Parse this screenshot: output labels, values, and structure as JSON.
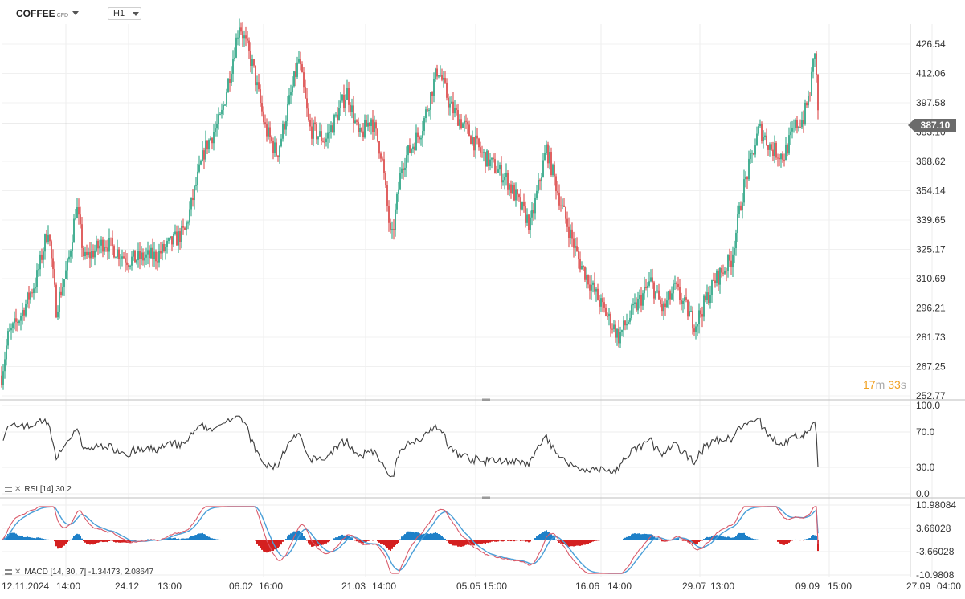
{
  "symbol": {
    "name": "COFFEE",
    "type": "CFD"
  },
  "timeframe": "H1",
  "current_price": "387.10",
  "countdown": {
    "minutes": "17",
    "minutes_unit": "m",
    "seconds": "33",
    "seconds_unit": "s"
  },
  "price_axis": [
    "426.54",
    "412.06",
    "397.58",
    "383.10",
    "368.62",
    "354.14",
    "339.65",
    "325.17",
    "310.69",
    "296.21",
    "281.73",
    "267.25",
    "252.77"
  ],
  "rsi_axis": [
    "100.0",
    "70.0",
    "30.0",
    "0.0"
  ],
  "macd_axis": [
    "10.98084",
    "3.66028",
    "-3.66028",
    "-10.9808"
  ],
  "time_axis": [
    "12.11.2024",
    "14:00",
    "24.12",
    "13:00",
    "06.02",
    "16:00",
    "21.03",
    "14:00",
    "05.05",
    "15:00",
    "16.06",
    "14:00",
    "29.07",
    "13:00",
    "09.09",
    "15:00",
    "27.09",
    "04:00"
  ],
  "rsi_label": {
    "name": "RSI",
    "params": "[14]",
    "value": "30.2"
  },
  "macd_label": {
    "name": "MACD",
    "params": "[14, 30, 7]",
    "value1": "-1.34473,",
    "value2": "2.08647"
  },
  "colors": {
    "up": "#1a9c7a",
    "down": "#d93a3a",
    "rsi": "#3c3c3c",
    "macd_line": "#d95a6a",
    "signal_line": "#4a9fd8",
    "hist_pos": "#1e80c8",
    "hist_neg": "#d42020",
    "price_line": "#6b6b6b"
  },
  "chart_data": [
    {
      "type": "candlestick",
      "title": "",
      "ylim": [
        252.77,
        440
      ],
      "current_price": 387.1,
      "x": [
        "12.11.2024 14:00",
        "24.12 13:00",
        "06.02 16:00",
        "21.03 14:00",
        "05.05 15:00",
        "16.06 14:00",
        "29.07 13:00",
        "09.09 15:00",
        "27.09 04:00"
      ],
      "close_path": [
        [
          0,
          258
        ],
        [
          10,
          282
        ],
        [
          25,
          292
        ],
        [
          45,
          310
        ],
        [
          60,
          336
        ],
        [
          70,
          296
        ],
        [
          85,
          318
        ],
        [
          95,
          347
        ],
        [
          105,
          320
        ],
        [
          130,
          329
        ],
        [
          160,
          320
        ],
        [
          195,
          322
        ],
        [
          230,
          334
        ],
        [
          255,
          375
        ],
        [
          275,
          390
        ],
        [
          290,
          420
        ],
        [
          298,
          437
        ],
        [
          315,
          415
        ],
        [
          330,
          385
        ],
        [
          345,
          372
        ],
        [
          372,
          419
        ],
        [
          385,
          385
        ],
        [
          405,
          379
        ],
        [
          420,
          392
        ],
        [
          432,
          403
        ],
        [
          447,
          380
        ],
        [
          462,
          390
        ],
        [
          475,
          372
        ],
        [
          487,
          328
        ],
        [
          500,
          367
        ],
        [
          525,
          385
        ],
        [
          545,
          415
        ],
        [
          560,
          396
        ],
        [
          580,
          385
        ],
        [
          600,
          372
        ],
        [
          630,
          360
        ],
        [
          660,
          337
        ],
        [
          680,
          375
        ],
        [
          700,
          345
        ],
        [
          720,
          320
        ],
        [
          745,
          300
        ],
        [
          770,
          282
        ],
        [
          790,
          296
        ],
        [
          810,
          309
        ],
        [
          825,
          295
        ],
        [
          840,
          306
        ],
        [
          865,
          288
        ],
        [
          890,
          310
        ],
        [
          910,
          320
        ],
        [
          925,
          355
        ],
        [
          945,
          385
        ],
        [
          960,
          375
        ],
        [
          975,
          371
        ],
        [
          990,
          386
        ],
        [
          1000,
          390
        ],
        [
          1008,
          403
        ],
        [
          1014,
          424
        ],
        [
          1019,
          387
        ]
      ]
    },
    {
      "type": "line",
      "name": "RSI [14]",
      "ylim": [
        0,
        100
      ],
      "last_value": 30.2,
      "reference_lines": [
        30,
        70
      ]
    },
    {
      "type": "line",
      "name": "MACD [14, 30, 7]",
      "ylim": [
        -10.9808,
        10.98084
      ],
      "macd": -1.34473,
      "signal": 2.08647,
      "hist_last": -3.43
    }
  ]
}
